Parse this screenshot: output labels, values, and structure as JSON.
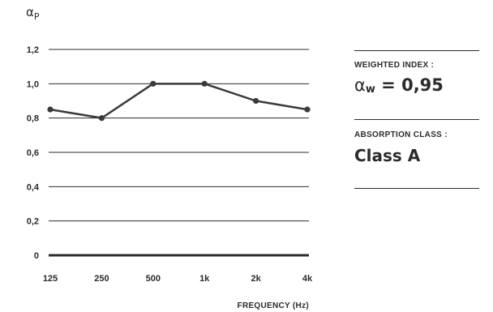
{
  "chart_data": {
    "type": "line",
    "y_label": {
      "symbol": "α",
      "subscript": "P"
    },
    "xlabel": "FREQUENCY (Hz)",
    "categories": [
      "125",
      "250",
      "500",
      "1k",
      "2k",
      "4k"
    ],
    "values": [
      0.85,
      0.8,
      1.0,
      1.0,
      0.9,
      0.85
    ],
    "yticks": [
      "0",
      "0,2",
      "0,4",
      "0,6",
      "0,8",
      "1,0",
      "1,2"
    ],
    "ylim": [
      0,
      1.2
    ],
    "grid": true,
    "line_color": "#3a3a3a"
  },
  "panel": {
    "weighted_label": "WEIGHTED INDEX :",
    "weighted_symbol": "α",
    "weighted_subscript": "w",
    "weighted_value": " = 0,95",
    "class_label": "ABSORPTION CLASS :",
    "class_value": "Class A"
  }
}
